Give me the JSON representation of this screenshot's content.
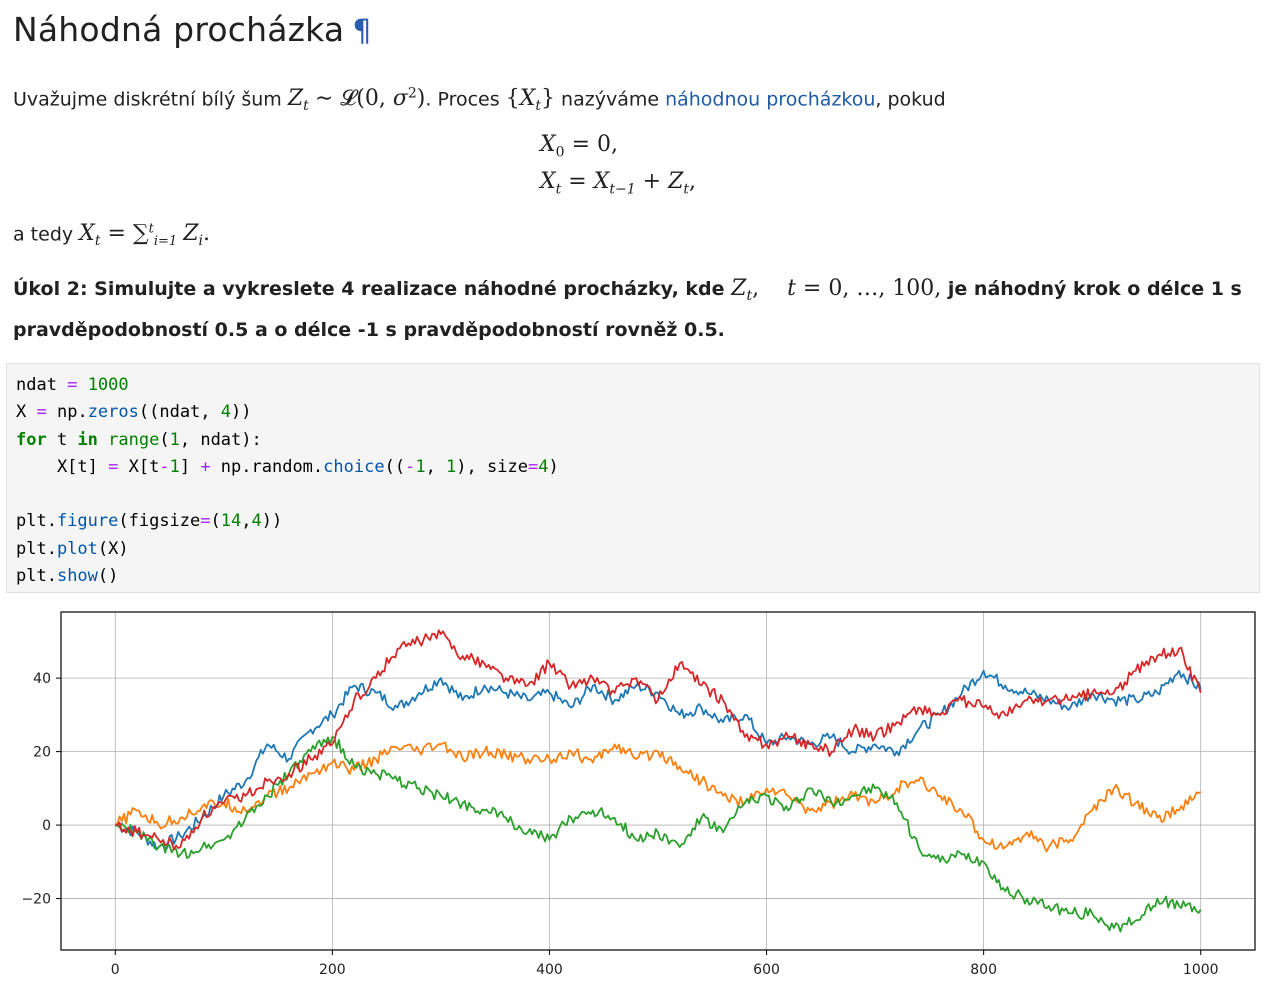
{
  "heading": {
    "title": "Náhodná procházka",
    "anchor": "¶"
  },
  "intro": {
    "text1": "Uvažujme diskrétní bílý šum ",
    "text2": ". Proces ",
    "text3": " nazýváme ",
    "link": "náhodnou procházkou",
    "text4": ", pokud"
  },
  "equations": {
    "line1": "X",
    "line1_sub": "0",
    "line1_rest": " = 0,",
    "line2_rest": " + "
  },
  "after": {
    "text": "a tedy "
  },
  "task": {
    "part1": "Úkol 2: Simulujte a vykreslete 4 realizace náhodné procházky, kde ",
    "part2": " je náhodný krok o délce 1 s pravděpodobností 0.5 a o délce -1 s pravděpodobností rovněž 0.5."
  },
  "code": {
    "lines": [
      "ndat = 1000",
      "X = np.zeros((ndat, 4))",
      "for t in range(1, ndat):",
      "    X[t] = X[t-1] + np.random.choice((-1, 1), size=4)",
      "",
      "plt.figure(figsize=(14,4))",
      "plt.plot(X)",
      "plt.show()"
    ]
  },
  "colors": {
    "series": [
      "#1f77b4",
      "#ff7f0e",
      "#2ca02c",
      "#d62728"
    ],
    "link": "#1f5aa6"
  },
  "chart_data": {
    "type": "line",
    "xlim": [
      -50,
      1050
    ],
    "ylim": [
      -34,
      58
    ],
    "xticks": [
      0,
      200,
      400,
      600,
      800,
      1000
    ],
    "yticks": [
      -20,
      0,
      20,
      40
    ],
    "xtick_labels": [
      "0",
      "200",
      "400",
      "600",
      "800",
      "1000"
    ],
    "ytick_labels": [
      "−20",
      "0",
      "20",
      "40"
    ],
    "grid": true,
    "series": [
      {
        "x": [
          0,
          20,
          40,
          60,
          80,
          100,
          120,
          140,
          160,
          180,
          200,
          220,
          240,
          260,
          280,
          300,
          320,
          340,
          360,
          380,
          400,
          420,
          440,
          460,
          480,
          500,
          520,
          540,
          560,
          580,
          600,
          620,
          640,
          660,
          680,
          700,
          720,
          740,
          760,
          780,
          800,
          820,
          840,
          860,
          880,
          900,
          920,
          940,
          960,
          980,
          1000
        ],
        "y": [
          0,
          -2,
          -6,
          -3,
          2,
          8,
          12,
          22,
          18,
          26,
          30,
          38,
          36,
          32,
          36,
          40,
          34,
          38,
          36,
          34,
          36,
          32,
          38,
          34,
          38,
          36,
          30,
          32,
          28,
          30,
          22,
          24,
          22,
          24,
          20,
          22,
          20,
          26,
          30,
          36,
          42,
          38,
          36,
          34,
          32,
          36,
          34,
          34,
          36,
          42,
          37
        ]
      },
      {
        "x": [
          0,
          20,
          40,
          60,
          80,
          100,
          120,
          140,
          160,
          180,
          200,
          220,
          240,
          260,
          280,
          300,
          320,
          340,
          360,
          380,
          400,
          420,
          440,
          460,
          480,
          500,
          520,
          540,
          560,
          580,
          600,
          620,
          640,
          660,
          680,
          700,
          720,
          740,
          760,
          780,
          800,
          820,
          840,
          860,
          880,
          900,
          920,
          940,
          960,
          980,
          1000
        ],
        "y": [
          0,
          4,
          0,
          2,
          5,
          6,
          4,
          8,
          10,
          14,
          17,
          15,
          18,
          21,
          20,
          22,
          18,
          20,
          19,
          18,
          18,
          20,
          17,
          22,
          18,
          20,
          16,
          12,
          8,
          6,
          10,
          8,
          4,
          6,
          8,
          6,
          10,
          12,
          8,
          4,
          -4,
          -6,
          -2,
          -6,
          -4,
          4,
          10,
          6,
          2,
          4,
          9
        ]
      },
      {
        "x": [
          0,
          20,
          40,
          60,
          80,
          100,
          120,
          140,
          160,
          180,
          200,
          220,
          240,
          260,
          280,
          300,
          320,
          340,
          360,
          380,
          400,
          420,
          440,
          460,
          480,
          500,
          520,
          540,
          560,
          580,
          600,
          620,
          640,
          660,
          680,
          700,
          720,
          740,
          760,
          780,
          800,
          820,
          840,
          860,
          880,
          900,
          920,
          940,
          960,
          980,
          1000
        ],
        "y": [
          0,
          -2,
          -6,
          -8,
          -6,
          -4,
          2,
          8,
          14,
          20,
          24,
          16,
          14,
          12,
          10,
          8,
          6,
          4,
          2,
          -2,
          -4,
          2,
          4,
          2,
          -4,
          -2,
          -6,
          2,
          -2,
          6,
          8,
          4,
          10,
          6,
          8,
          10,
          6,
          -6,
          -10,
          -8,
          -10,
          -18,
          -20,
          -22,
          -24,
          -24,
          -28,
          -26,
          -20,
          -22,
          -23
        ]
      },
      {
        "x": [
          0,
          20,
          40,
          60,
          80,
          100,
          120,
          140,
          160,
          180,
          200,
          220,
          240,
          260,
          280,
          300,
          320,
          340,
          360,
          380,
          400,
          420,
          440,
          460,
          480,
          500,
          520,
          540,
          560,
          580,
          600,
          620,
          640,
          660,
          680,
          700,
          720,
          740,
          760,
          780,
          800,
          820,
          840,
          860,
          880,
          900,
          920,
          940,
          960,
          980,
          1000
        ],
        "y": [
          0,
          -2,
          -4,
          -6,
          2,
          6,
          8,
          12,
          14,
          18,
          22,
          34,
          40,
          48,
          50,
          52,
          46,
          44,
          40,
          38,
          44,
          38,
          40,
          36,
          40,
          34,
          44,
          38,
          34,
          24,
          22,
          24,
          22,
          20,
          26,
          24,
          28,
          32,
          30,
          34,
          32,
          30,
          34,
          34,
          34,
          36,
          36,
          42,
          46,
          48,
          36
        ]
      }
    ]
  }
}
